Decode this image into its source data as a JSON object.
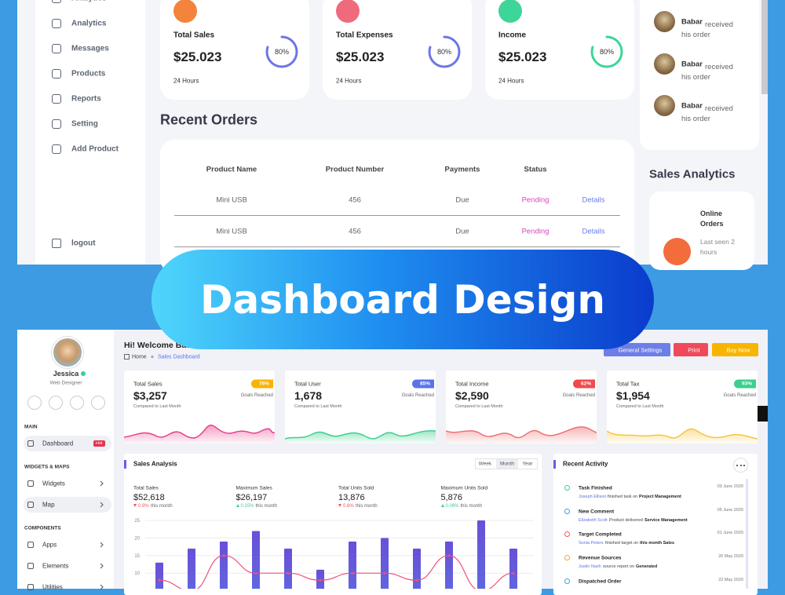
{
  "top": {
    "nav": [
      "Analytics",
      "Analytics",
      "Messages",
      "Products",
      "Reports",
      "Setting",
      "Add Product"
    ],
    "logout": "logout",
    "cards": [
      {
        "title": "Total Sales",
        "amount": "$25.023",
        "period": "24 Hours",
        "progress": {
          "value": 80,
          "label": "80%"
        },
        "color": "#f4833b",
        "ring_color": "#6e76e5"
      },
      {
        "title": "Total Expenses",
        "amount": "$25.023",
        "period": "24 Hours",
        "progress": {
          "value": 80,
          "label": "80%"
        },
        "color": "#f06a7d",
        "ring_color": "#6e76e5"
      },
      {
        "title": "Income",
        "amount": "$25.023",
        "period": "24 Hours",
        "progress": {
          "value": 80,
          "label": "80%"
        },
        "color": "#3ed598",
        "ring_color": "#3ed598"
      }
    ],
    "orders": {
      "title": "Recent Orders",
      "columns": [
        "Product Name",
        "Product Number",
        "Payments",
        "Status"
      ],
      "rows": [
        [
          "Mini USB",
          456,
          "Due",
          "Pending",
          "Details"
        ],
        [
          "Mini USB",
          456,
          "Due",
          "Pending",
          "Details"
        ]
      ]
    },
    "updates": [
      {
        "name": "Babar",
        "text": "received his order"
      },
      {
        "name": "Babar",
        "text": "received his order"
      },
      {
        "name": "Babar",
        "text": "received his order"
      }
    ],
    "analytics": {
      "title": "Sales Analytics",
      "item": "Online Orders",
      "note": "Last seen 2 hours"
    }
  },
  "banner": "Dashboard Design",
  "bottom": {
    "user": {
      "name": "Jessica",
      "role": "Web Designer"
    },
    "nav": [
      {
        "section": "MAIN",
        "items": [
          {
            "label": "Dashboard",
            "badge": "Hot",
            "active": true
          }
        ]
      },
      {
        "section": "WIDGETS & MAPS",
        "items": [
          {
            "label": "Widgets",
            "arrow": true
          },
          {
            "label": "Map",
            "arrow": true,
            "active": true
          }
        ]
      },
      {
        "section": "COMPONENTS",
        "items": [
          {
            "label": "Apps",
            "arrow": true
          },
          {
            "label": "Elements",
            "arrow": true
          },
          {
            "label": "Utilities",
            "arrow": true
          }
        ]
      }
    ],
    "greeting": "Hi! Welcome Back",
    "breadcrumb": [
      "Home",
      "»",
      "Sales Dashboard"
    ],
    "buttons": [
      {
        "label": "General Settings",
        "color": "#6c7fe6"
      },
      {
        "label": "Print",
        "color": "#f04a5a"
      },
      {
        "label": "Buy Now",
        "color": "#f8b500"
      }
    ],
    "stats": [
      {
        "title": "Total Sales",
        "amount": "$3,257",
        "badge": "76%",
        "badge_color": "#f7b500",
        "goal": "Goals Reached",
        "note": "Compared to Last Month"
      },
      {
        "title": "Total User",
        "amount": "1,678",
        "badge": "85%",
        "badge_color": "#5b73e8",
        "goal": "Goals Reached",
        "note": "Compared to Last Month"
      },
      {
        "title": "Total Income",
        "amount": "$2,590",
        "badge": "62%",
        "badge_color": "#f04a4a",
        "goal": "Goals Reached",
        "note": "Compared to Last Month"
      },
      {
        "title": "Total Tax",
        "amount": "$1,954",
        "badge": "93%",
        "badge_color": "#3ccf8e",
        "goal": "Goals Reached",
        "note": "Compared to Last Month"
      }
    ],
    "sales": {
      "title": "Sales Analysis",
      "tabs": [
        "Week",
        "Month",
        "Year"
      ],
      "active_tab": 1,
      "metrics": [
        {
          "label": "Total Sales",
          "value": "$52,618",
          "change": "0.9%",
          "direction": "down",
          "period": "this month"
        },
        {
          "label": "Maximum Sales",
          "value": "$26,197",
          "change": "0.15%",
          "direction": "up",
          "period": "this month"
        },
        {
          "label": "Total Units Sold",
          "value": "13,876",
          "change": "0.8%",
          "direction": "down",
          "period": "this month"
        },
        {
          "label": "Maximum Units Sold",
          "value": "5,876",
          "change": "0.06%",
          "direction": "up",
          "period": "this month"
        }
      ]
    },
    "activity": {
      "title": "Recent Activity",
      "items": [
        {
          "title": "Task Finished",
          "date": "09 June 2020",
          "who": "Joseph Ellison",
          "what": "finished task on",
          "target": "Project Management",
          "color": "#3ecf8e"
        },
        {
          "title": "New Comment",
          "date": "05 June 2020",
          "who": "Elizabeth Scott",
          "what": "Product delivered",
          "target": "Service Management",
          "color": "#3aa5e0"
        },
        {
          "title": "Target Completed",
          "date": "01 June 2020",
          "who": "Sonia Peters",
          "what": "finished target on",
          "target": "this month Sales",
          "color": "#f05a5a"
        },
        {
          "title": "Revenue Sources",
          "date": "26 May 2020",
          "who": "Justin Nash",
          "what": "source report on",
          "target": "Generated",
          "color": "#f7a43a"
        },
        {
          "title": "Dispatched Order",
          "date": "22 May 2020",
          "color": "#3aa5e0"
        }
      ]
    }
  },
  "chart_data": {
    "type": "bar",
    "series": [
      {
        "type": "bar",
        "color": "#5b6fe2",
        "values": [
          13,
          17,
          19,
          22,
          17,
          11,
          19,
          20,
          17,
          19,
          25,
          17
        ]
      },
      {
        "type": "line",
        "color": "#f0507a",
        "values": [
          8,
          5,
          15,
          10,
          10,
          8,
          10,
          10,
          8,
          15,
          5,
          10
        ]
      }
    ],
    "ylim": [
      0,
      25
    ],
    "yticks": [
      10,
      15,
      20,
      25
    ],
    "grid": true
  }
}
